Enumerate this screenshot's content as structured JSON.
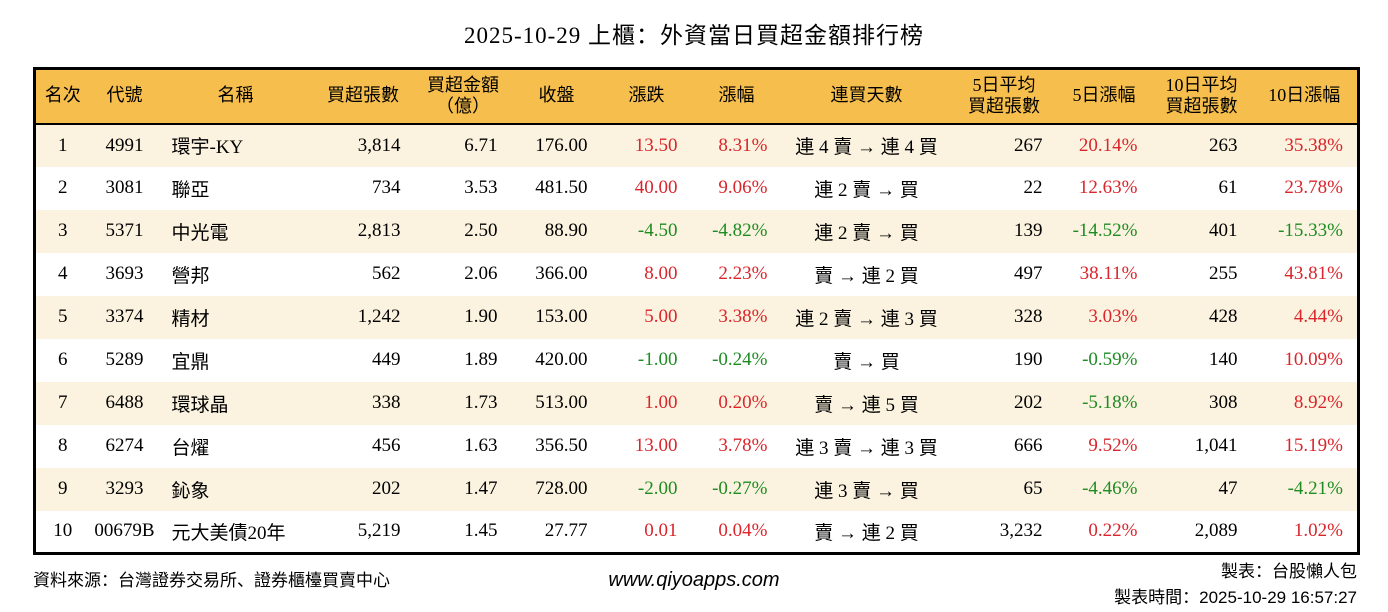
{
  "page": {
    "title": "2025-10-29 上櫃：外資當日買超金額排行榜",
    "source": "資料來源：台灣證券交易所、證券櫃檯買賣中心",
    "website": "www.qiyoapps.com",
    "maker": "製表：台股懶人包",
    "made_time": "製表時間：2025-10-29 16:57:27"
  },
  "colors": {
    "header_bg": "#F6BE4D",
    "row_odd_bg": "#FBF3DF",
    "row_even_bg": "#FFFFFF",
    "up_red": "#D9252B",
    "down_green": "#1E8C23",
    "border": "#000000"
  },
  "chart_data": {
    "type": "table",
    "title": "2025-10-29 上櫃：外資當日買超金額排行榜",
    "columns": [
      "名次",
      "代號",
      "名稱",
      "買超張數",
      "買超金額\n（億）",
      "收盤",
      "漲跌",
      "漲幅",
      "連買天數",
      "5日平均\n買超張數",
      "5日漲幅",
      "10日平均\n買超張數",
      "10日漲幅"
    ],
    "column_keys": [
      "rank",
      "code",
      "name",
      "buy-volume",
      "buy-amount",
      "close",
      "change",
      "change-pct",
      "streak",
      "avg5-volume",
      "pct5",
      "avg10-volume",
      "pct10"
    ],
    "colored_column_indices": [
      6,
      7,
      10,
      12
    ],
    "color_rule": "positive values red, negative values green (Taiwan market convention)",
    "rows": [
      [
        "1",
        "4991",
        "環宇-KY",
        "3,814",
        "6.71",
        "176.00",
        "13.50",
        "8.31%",
        "連 4 賣 → 連 4 買",
        "267",
        "20.14%",
        "263",
        "35.38%"
      ],
      [
        "2",
        "3081",
        "聯亞",
        "734",
        "3.53",
        "481.50",
        "40.00",
        "9.06%",
        "連 2 賣 → 買",
        "22",
        "12.63%",
        "61",
        "23.78%"
      ],
      [
        "3",
        "5371",
        "中光電",
        "2,813",
        "2.50",
        "88.90",
        "-4.50",
        "-4.82%",
        "連 2 賣 → 買",
        "139",
        "-14.52%",
        "401",
        "-15.33%"
      ],
      [
        "4",
        "3693",
        "營邦",
        "562",
        "2.06",
        "366.00",
        "8.00",
        "2.23%",
        "賣 → 連 2 買",
        "497",
        "38.11%",
        "255",
        "43.81%"
      ],
      [
        "5",
        "3374",
        "精材",
        "1,242",
        "1.90",
        "153.00",
        "5.00",
        "3.38%",
        "連 2 賣 → 連 3 買",
        "328",
        "3.03%",
        "428",
        "4.44%"
      ],
      [
        "6",
        "5289",
        "宜鼎",
        "449",
        "1.89",
        "420.00",
        "-1.00",
        "-0.24%",
        "賣 → 買",
        "190",
        "-0.59%",
        "140",
        "10.09%"
      ],
      [
        "7",
        "6488",
        "環球晶",
        "338",
        "1.73",
        "513.00",
        "1.00",
        "0.20%",
        "賣 → 連 5 買",
        "202",
        "-5.18%",
        "308",
        "8.92%"
      ],
      [
        "8",
        "6274",
        "台燿",
        "456",
        "1.63",
        "356.50",
        "13.00",
        "3.78%",
        "連 3 賣 → 連 3 買",
        "666",
        "9.52%",
        "1,041",
        "15.19%"
      ],
      [
        "9",
        "3293",
        "鈊象",
        "202",
        "1.47",
        "728.00",
        "-2.00",
        "-0.27%",
        "連 3 賣 → 買",
        "65",
        "-4.46%",
        "47",
        "-4.21%"
      ],
      [
        "10",
        "00679B",
        "元大美債20年",
        "5,219",
        "1.45",
        "27.77",
        "0.01",
        "0.04%",
        "賣 → 連 2 買",
        "3,232",
        "0.22%",
        "2,089",
        "1.02%"
      ]
    ]
  }
}
